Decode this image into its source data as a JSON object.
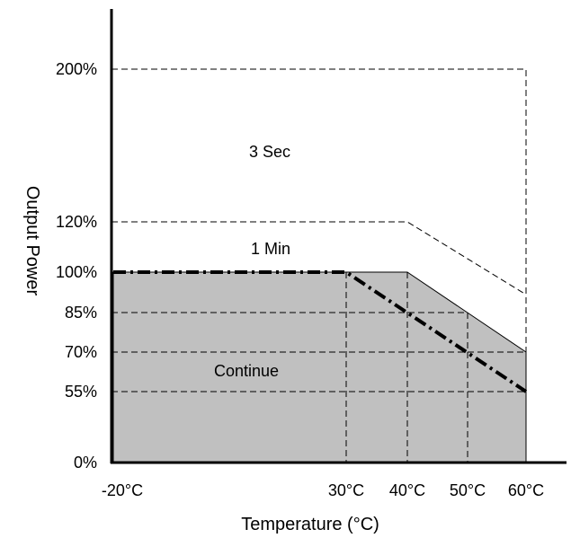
{
  "chart_data": {
    "type": "area",
    "xlabel": "Temperature (°C)",
    "ylabel": "Output Power",
    "x_unit_label": "°C",
    "y_unit_label": "%",
    "x_ticks": [
      -20,
      30,
      40,
      50,
      60
    ],
    "y_ticks": [
      0,
      55,
      70,
      85,
      100,
      120,
      200
    ],
    "xlim": [
      -20,
      60
    ],
    "y_scale": "nonlinear",
    "grid": "dashed reference lines at tick values",
    "series": [
      {
        "name": "Continue",
        "style": "gray filled area",
        "x": [
          -20,
          30,
          40,
          60
        ],
        "y": [
          100,
          100,
          100,
          70
        ]
      },
      {
        "name": "1 Min",
        "style": "dashed line",
        "x": [
          -20,
          40,
          60
        ],
        "y": [
          120,
          120,
          92
        ]
      },
      {
        "name": "3 Sec",
        "style": "dashed boundary",
        "x": [
          -20,
          60,
          60
        ],
        "y": [
          200,
          200,
          0
        ]
      },
      {
        "name": "",
        "style": "thick dash-dot line",
        "x": [
          -20,
          30,
          60
        ],
        "y": [
          100,
          100,
          55
        ]
      }
    ],
    "annotations": [
      "3 Sec",
      "1 Min",
      "Continue"
    ],
    "colors": {
      "fill": "#c0c0c0",
      "line": "#000000"
    }
  }
}
